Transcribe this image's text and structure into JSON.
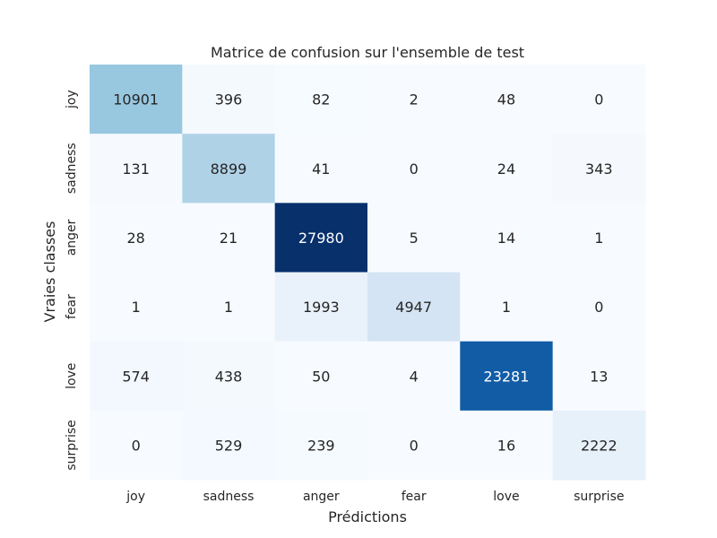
{
  "chart_data": {
    "type": "heatmap",
    "title": "Matrice de confusion sur l'ensemble de test",
    "xlabel": "Prédictions",
    "ylabel": "Vraies classes",
    "x_categories": [
      "joy",
      "sadness",
      "anger",
      "fear",
      "love",
      "surprise"
    ],
    "y_categories": [
      "joy",
      "sadness",
      "anger",
      "fear",
      "love",
      "surprise"
    ],
    "values": [
      [
        10901,
        396,
        82,
        2,
        48,
        0
      ],
      [
        131,
        8899,
        41,
        0,
        24,
        343
      ],
      [
        28,
        21,
        27980,
        5,
        14,
        1
      ],
      [
        1,
        1,
        1993,
        4947,
        1,
        0
      ],
      [
        574,
        438,
        50,
        4,
        23281,
        13
      ],
      [
        0,
        529,
        239,
        0,
        16,
        2222
      ]
    ],
    "colormap": "Blues",
    "value_range": [
      0,
      27980
    ],
    "colorbar": false,
    "grid": false
  }
}
